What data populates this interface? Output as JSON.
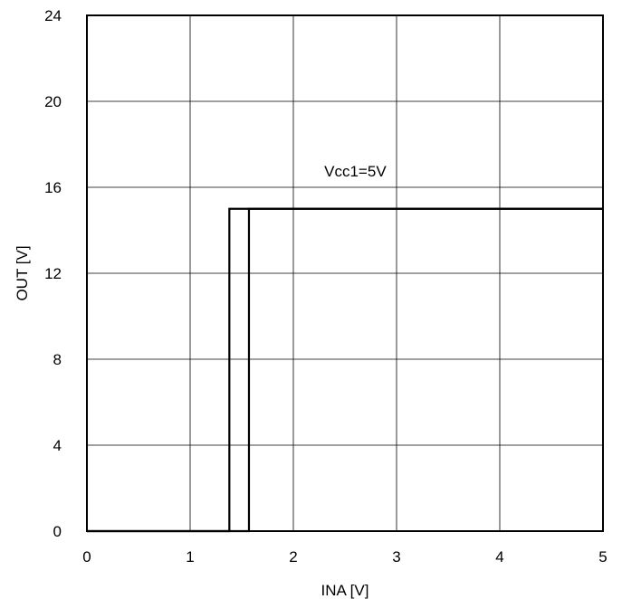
{
  "chart_data": {
    "type": "line",
    "title": "",
    "xlabel": "INA [V]",
    "ylabel": "OUT [V]",
    "xlim": [
      0,
      5
    ],
    "ylim": [
      0,
      24
    ],
    "xticks": [
      0,
      1,
      2,
      3,
      4,
      5
    ],
    "yticks": [
      0,
      4,
      8,
      12,
      16,
      20,
      24
    ],
    "grid": true,
    "annotation": {
      "text": "Vcc1=5V",
      "x": 2.6,
      "y": 16.5
    },
    "series": [
      {
        "x": [
          0,
          1.38,
          1.38,
          5
        ],
        "y": [
          0,
          0,
          15,
          15
        ],
        "color": "#000000"
      },
      {
        "x": [
          0,
          1.57,
          1.57,
          5
        ],
        "y": [
          0,
          0,
          15,
          15
        ],
        "color": "#000000"
      }
    ]
  }
}
